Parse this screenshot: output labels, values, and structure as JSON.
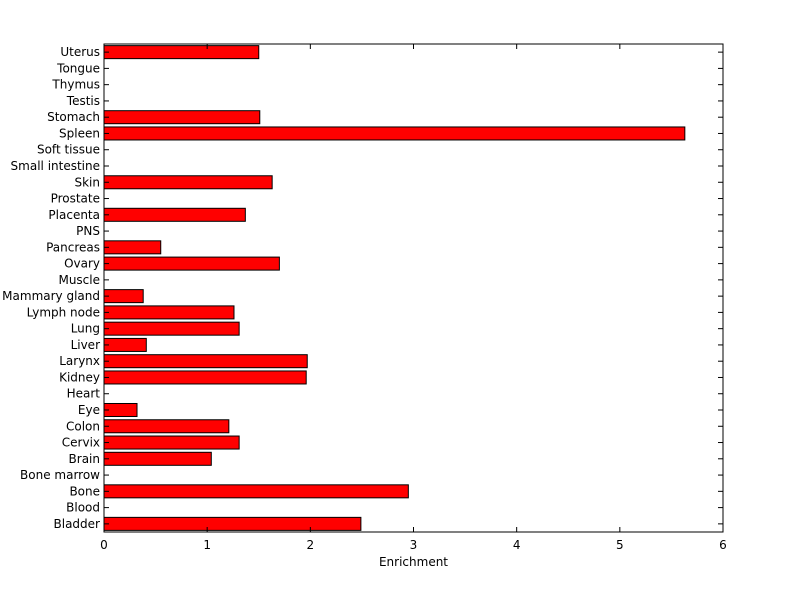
{
  "chart_data": {
    "type": "bar",
    "orientation": "horizontal",
    "title": "",
    "xlabel": "Enrichment",
    "ylabel": "",
    "xlim": [
      0,
      6
    ],
    "x_ticks": [
      "0",
      "1",
      "2",
      "3",
      "4",
      "5",
      "6"
    ],
    "grid": false,
    "legend": "none",
    "bar_color": "#ff0000",
    "bar_edge_color": "#000000",
    "categories": [
      "Bladder",
      "Blood",
      "Bone",
      "Bone marrow",
      "Brain",
      "Cervix",
      "Colon",
      "Eye",
      "Heart",
      "Kidney",
      "Larynx",
      "Liver",
      "Lung",
      "Lymph node",
      "Mammary gland",
      "Muscle",
      "Ovary",
      "Pancreas",
      "PNS",
      "Placenta",
      "Prostate",
      "Skin",
      "Small intestine",
      "Soft tissue",
      "Spleen",
      "Stomach",
      "Testis",
      "Thymus",
      "Tongue",
      "Uterus"
    ],
    "values": [
      2.49,
      0,
      2.95,
      0,
      1.04,
      1.31,
      1.21,
      0.32,
      0,
      1.96,
      1.97,
      0.41,
      1.31,
      1.26,
      0.38,
      0,
      1.7,
      0.55,
      0,
      1.37,
      0,
      1.63,
      0,
      0,
      5.63,
      1.51,
      0,
      0,
      0,
      1.5
    ]
  }
}
